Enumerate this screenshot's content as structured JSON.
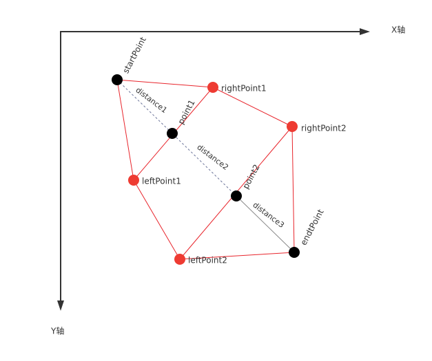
{
  "axes": {
    "x": "X轴",
    "y": "Y轴"
  },
  "points": {
    "start": "startPoint",
    "point1": "point1",
    "point2": "point2",
    "end": "endtPoint",
    "rightPoint1": "rightPoint1",
    "rightPoint2": "rightPoint2",
    "leftPoint1": "leftPoint1",
    "leftPoint2": "leftPoint2"
  },
  "distances": [
    "distance1",
    "distance2",
    "distance3"
  ]
}
